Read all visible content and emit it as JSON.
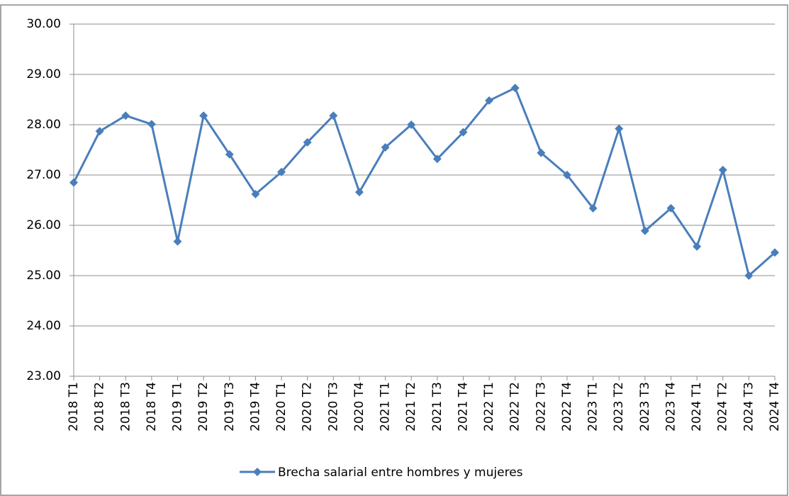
{
  "chart_data": {
    "type": "line",
    "categories": [
      "2018 T1",
      "2018 T2",
      "2018 T3",
      "2018 T4",
      "2019 T1",
      "2019 T2",
      "2019 T3",
      "2019 T4",
      "2020 T1",
      "2020 T2",
      "2020 T3",
      "2020 T4",
      "2021 T1",
      "2021 T2",
      "2021 T3",
      "2021 T4",
      "2022 T1",
      "2022 T2",
      "2022 T3",
      "2022 T4",
      "2023 T1",
      "2023 T2",
      "2023 T3",
      "2023 T4",
      "2024 T1",
      "2024 T2",
      "2024 T3",
      "2024 T4"
    ],
    "series": [
      {
        "name": "Brecha salarial entre hombres y mujeres",
        "color": "#4a7ebb",
        "values": [
          26.85,
          27.87,
          28.18,
          28.01,
          25.68,
          28.18,
          27.41,
          26.62,
          27.06,
          27.65,
          28.18,
          26.66,
          27.55,
          28.0,
          27.32,
          27.85,
          28.48,
          28.73,
          27.44,
          27.0,
          26.34,
          27.92,
          25.89,
          26.34,
          25.58,
          27.1,
          25.0,
          25.46
        ]
      }
    ],
    "ylim": [
      23,
      30
    ],
    "yticks": [
      {
        "value": 23,
        "label": "23.00"
      },
      {
        "value": 24,
        "label": "24.00"
      },
      {
        "value": 25,
        "label": "25.00"
      },
      {
        "value": 26,
        "label": "26.00"
      },
      {
        "value": 27,
        "label": "27.00"
      },
      {
        "value": 28,
        "label": "28.00"
      },
      {
        "value": 29,
        "label": "29.00"
      },
      {
        "value": 30,
        "label": "30.00"
      }
    ],
    "grid": true,
    "legend": "bottom"
  }
}
